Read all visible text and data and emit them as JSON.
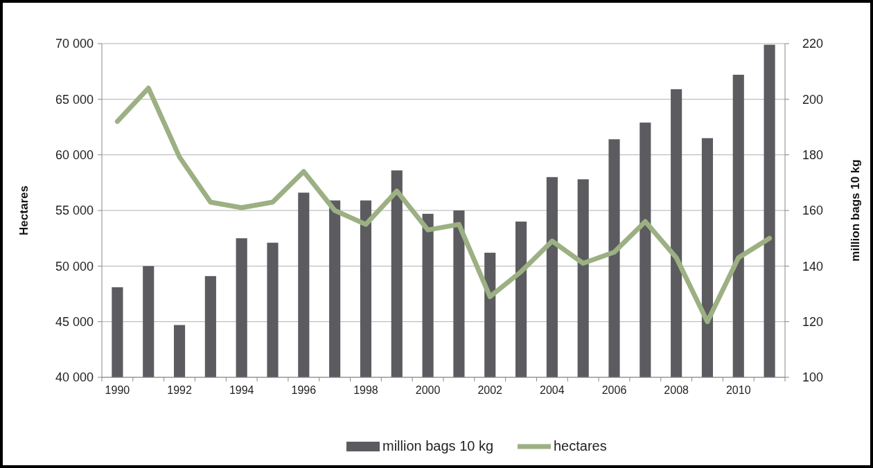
{
  "chart_data": {
    "type": "bar",
    "ylabel": "Hectares",
    "y2label": "million bags 10 kg",
    "categories": [
      "1990",
      null,
      "1992",
      null,
      "1994",
      null,
      "1996",
      null,
      "1998",
      null,
      "2000",
      null,
      "2002",
      null,
      "2004",
      null,
      "2006",
      null,
      "2008",
      null,
      "2010",
      null
    ],
    "series": [
      {
        "name": "million bags 10 kg",
        "axis": "y2",
        "color": "#5b5b60",
        "values": [
          132.4,
          140,
          118.8,
          136.4,
          150,
          148.4,
          166.4,
          163.6,
          163.6,
          174.4,
          158.8,
          160,
          144.8,
          156,
          172,
          171.2,
          185.6,
          191.6,
          203.6,
          186,
          208.8,
          219.6
        ]
      },
      {
        "name": "hectares",
        "type": "line",
        "color": "#9cb083",
        "values": [
          63000,
          66000,
          59800,
          55750,
          55250,
          55750,
          58500,
          55000,
          53750,
          56750,
          53250,
          53750,
          47250,
          49500,
          52250,
          50250,
          51250,
          54000,
          50750,
          45000,
          50750,
          52500
        ]
      }
    ],
    "ylim": [
      40000,
      70000
    ],
    "yticks": [
      {
        "value": 40000,
        "label": "40 000"
      },
      {
        "value": 45000,
        "label": "45 000"
      },
      {
        "value": 50000,
        "label": "50 000"
      },
      {
        "value": 55000,
        "label": "55 000"
      },
      {
        "value": 60000,
        "label": "60 000"
      },
      {
        "value": 65000,
        "label": "65 000"
      },
      {
        "value": 70000,
        "label": "70 000"
      }
    ],
    "y2lim": [
      100,
      220
    ],
    "y2ticks": [
      100,
      120,
      140,
      160,
      180,
      200,
      220
    ],
    "grid": "y",
    "legend": "bottom",
    "marker": "none",
    "line_style": "solid"
  }
}
